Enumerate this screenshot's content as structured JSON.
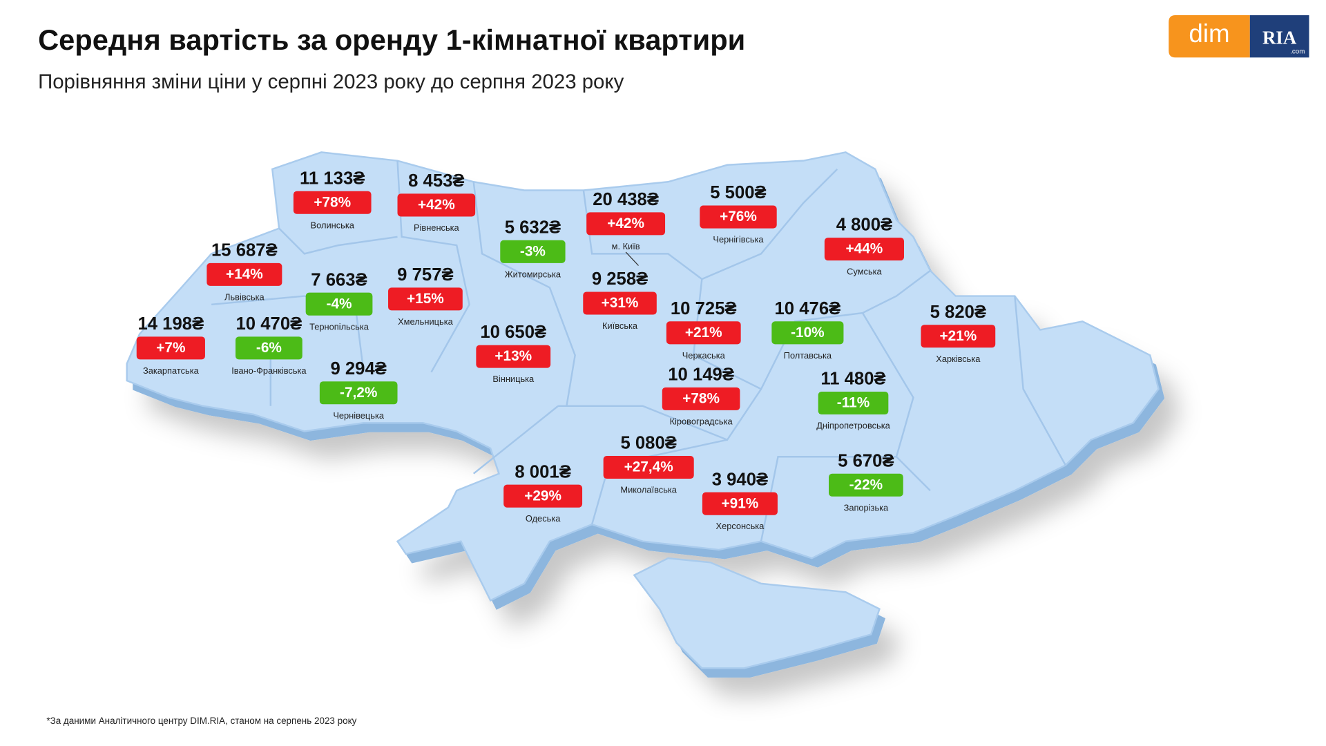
{
  "header": {
    "title": "Середня вартість за оренду 1-кімнатної квартири",
    "subtitle": "Порівняння зміни ціни у серпні 2023 року до серпня 2023 року"
  },
  "logo": {
    "dim": "dim",
    "ria": "RIA",
    "com": ".com"
  },
  "regions": [
    {
      "name": "Волинська",
      "price": "11 133₴",
      "change": "+78%",
      "color": "#ee1c24"
    },
    {
      "name": "Рівненська",
      "price": "8 453₴",
      "change": "+42%",
      "color": "#ee1c24"
    },
    {
      "name": "Львівська",
      "price": "15 687₴",
      "change": "+14%",
      "color": "#ee1c24"
    },
    {
      "name": "Тернопільська",
      "price": "7 663₴",
      "change": "-4%",
      "color": "#4cbb17"
    },
    {
      "name": "Хмельницька",
      "price": "9 757₴",
      "change": "+15%",
      "color": "#ee1c24"
    },
    {
      "name": "Житомирська",
      "price": "5 632₴",
      "change": "-3%",
      "color": "#4cbb17"
    },
    {
      "name": "м. Київ",
      "price": "20 438₴",
      "change": "+42%",
      "color": "#ee1c24"
    },
    {
      "name": "Київська",
      "price": "9 258₴",
      "change": "+31%",
      "color": "#ee1c24"
    },
    {
      "name": "Чернігівська",
      "price": "5 500₴",
      "change": "+76%",
      "color": "#ee1c24"
    },
    {
      "name": "Сумська",
      "price": "4 800₴",
      "change": "+44%",
      "color": "#ee1c24"
    },
    {
      "name": "Закарпатська",
      "price": "14 198₴",
      "change": "+7%",
      "color": "#ee1c24"
    },
    {
      "name": "Івано-Франківська",
      "price": "10 470₴",
      "change": "-6%",
      "color": "#4cbb17"
    },
    {
      "name": "Чернівецька",
      "price": "9 294₴",
      "change": "-7,2%",
      "color": "#4cbb17"
    },
    {
      "name": "Вінницька",
      "price": "10 650₴",
      "change": "+13%",
      "color": "#ee1c24"
    },
    {
      "name": "Черкаська",
      "price": "10 725₴",
      "change": "+21%",
      "color": "#ee1c24"
    },
    {
      "name": "Полтавська",
      "price": "10 476₴",
      "change": "-10%",
      "color": "#4cbb17"
    },
    {
      "name": "Харківська",
      "price": "5 820₴",
      "change": "+21%",
      "color": "#ee1c24"
    },
    {
      "name": "Кіровоградська",
      "price": "10 149₴",
      "change": "+78%",
      "color": "#ee1c24"
    },
    {
      "name": "Дніпропетровська",
      "price": "11 480₴",
      "change": "-11%",
      "color": "#4cbb17"
    },
    {
      "name": "Миколаївська",
      "price": "5 080₴",
      "change": "+27,4%",
      "color": "#ee1c24"
    },
    {
      "name": "Одеська",
      "price": "8 001₴",
      "change": "+29%",
      "color": "#ee1c24"
    },
    {
      "name": "Херсонська",
      "price": "3 940₴",
      "change": "+91%",
      "color": "#ee1c24"
    },
    {
      "name": "Запорізька",
      "price": "5 670₴",
      "change": "-22%",
      "color": "#4cbb17"
    }
  ],
  "footnote": "*За даними Аналітичного центру DIM.RIA, станом на серпень 2023 року"
}
